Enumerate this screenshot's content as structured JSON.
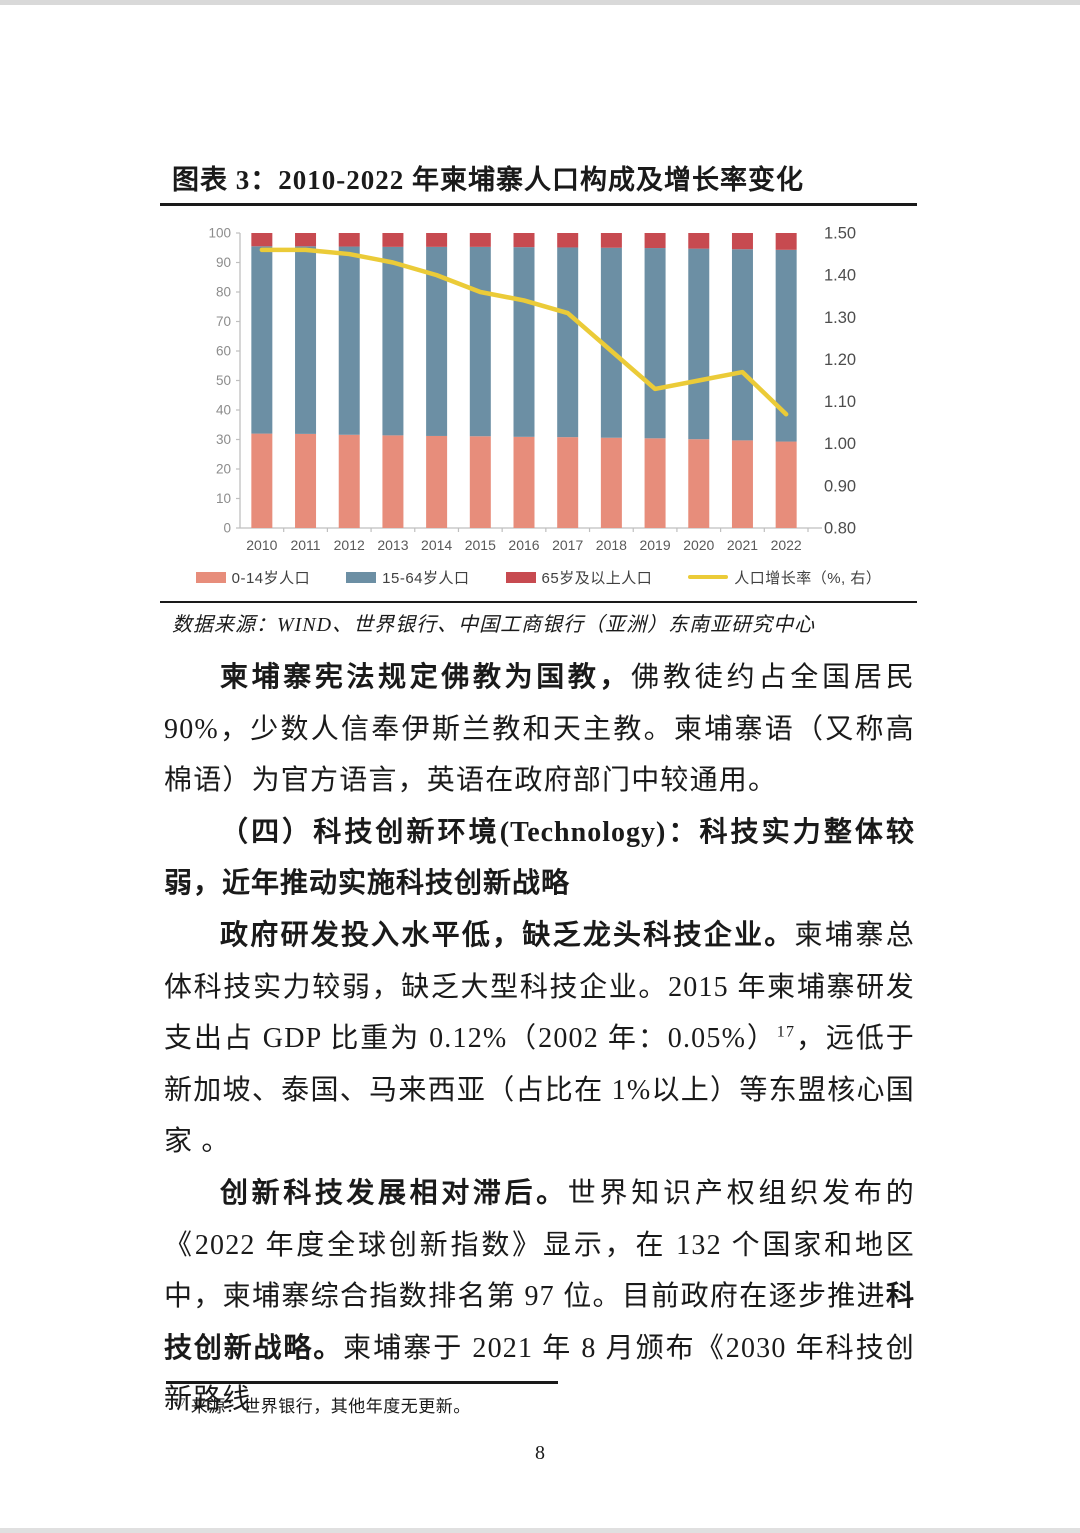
{
  "figure": {
    "title": "图表 3：2010-2022 年柬埔寨人口构成及增长率变化",
    "source": "数据来源：WIND、世界银行、中国工商银行（亚洲）东南亚研究中心"
  },
  "chart_data": {
    "type": "bar",
    "subtype": "stacked-bars-with-line",
    "title": "2010-2022 年柬埔寨人口构成及增长率变化",
    "categories": [
      "2010",
      "2011",
      "2012",
      "2013",
      "2014",
      "2015",
      "2016",
      "2017",
      "2018",
      "2019",
      "2020",
      "2021",
      "2022"
    ],
    "series": [
      {
        "name": "0-14岁人口",
        "type": "bar",
        "axis": "left",
        "color": "#E78D7B",
        "values": [
          32.0,
          31.9,
          31.6,
          31.4,
          31.2,
          31.1,
          30.9,
          30.8,
          30.6,
          30.4,
          30.1,
          29.7,
          29.3
        ]
      },
      {
        "name": "15-64岁人口",
        "type": "bar",
        "axis": "left",
        "color": "#6C8FA4",
        "values": [
          63.5,
          63.6,
          63.8,
          63.9,
          64.1,
          64.2,
          64.3,
          64.3,
          64.4,
          64.5,
          64.6,
          64.8,
          65.0
        ]
      },
      {
        "name": "65岁及以上人口",
        "type": "bar",
        "axis": "left",
        "color": "#C74A50",
        "values": [
          4.5,
          4.5,
          4.6,
          4.7,
          4.7,
          4.7,
          4.8,
          4.9,
          5.0,
          5.1,
          5.3,
          5.5,
          5.7
        ]
      },
      {
        "name": "人口增长率（%, 右）",
        "type": "line",
        "axis": "right",
        "color": "#EBCB38",
        "values": [
          1.46,
          1.46,
          1.45,
          1.43,
          1.4,
          1.36,
          1.34,
          1.31,
          1.22,
          1.13,
          1.15,
          1.17,
          1.07
        ]
      }
    ],
    "left_axis": {
      "min": 0,
      "max": 100,
      "step": 10,
      "tick_labels": [
        "0",
        "10",
        "20",
        "30",
        "40",
        "50",
        "60",
        "70",
        "80",
        "90",
        "100"
      ]
    },
    "right_axis": {
      "min": 0.8,
      "max": 1.5,
      "step": 0.1,
      "tick_labels": [
        "0.80",
        "0.90",
        "1.00",
        "1.10",
        "1.20",
        "1.30",
        "1.40",
        "1.50"
      ]
    },
    "legend_position": "bottom",
    "grid": false,
    "stacked": true,
    "bars_sum_to": 100
  },
  "paragraphs": [
    {
      "name": "para-religion",
      "runs": [
        {
          "b": true,
          "t": "柬埔寨宪法规定佛教为国教，"
        },
        {
          "t": "佛教徒约占全国居民 90%，少数人信奉伊斯兰教和天主教。柬埔寨语（又称高棉语）为官方语言，英语在政府部门中较通用。"
        }
      ]
    },
    {
      "name": "heading-technology",
      "runs": [
        {
          "b": true,
          "t": "（四）科技创新环境(Technology)：科技实力整体较弱，近年推动实施科技创新战略"
        }
      ]
    },
    {
      "name": "para-rd-investment",
      "runs": [
        {
          "b": true,
          "t": "政府研发投入水平低，缺乏龙头科技企业。"
        },
        {
          "t": "柬埔寨总体科技实力较弱，缺乏大型科技企业。2015 年柬埔寨研发支出占 GDP 比重为 0.12%（2002 年：0.05%）"
        },
        {
          "sup": true,
          "t": "17"
        },
        {
          "t": "，远低于新加坡、泰国、马来西亚（占比在 1%以上）等东盟核心国家 。"
        }
      ]
    },
    {
      "name": "para-innovation-lag",
      "runs": [
        {
          "b": true,
          "t": "创新科技发展相对滞后。"
        },
        {
          "t": "世界知识产权组织发布的《2022 年度全球创新指数》显示，在 132 个国家和地区中，柬埔寨综合指数排名第 97 位。目前政府在逐步推进"
        },
        {
          "b": true,
          "t": "科技创新战略。"
        },
        {
          "t": "柬埔寨于 2021 年 8 月颁布《2030 年科技创新路线"
        }
      ]
    }
  ],
  "footnote": {
    "marker": "17",
    "text": "来源：世界银行，其他年度无更新。"
  },
  "page": {
    "number": "8"
  }
}
